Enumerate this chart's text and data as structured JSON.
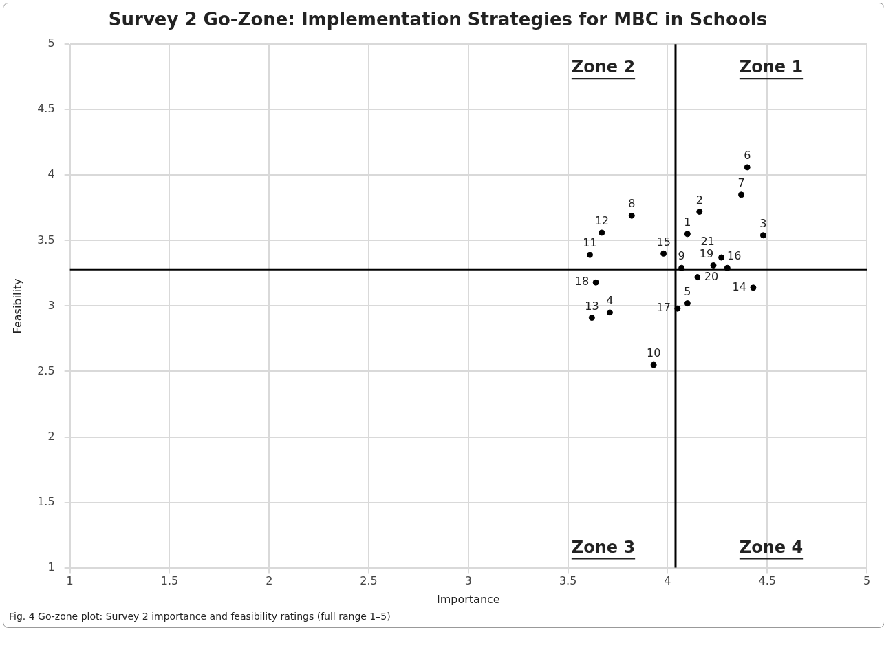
{
  "chart_data": {
    "type": "scatter",
    "title": "Survey 2 Go-Zone: Implementation Strategies for MBC in Schools",
    "xlabel": "Importance",
    "ylabel": "Feasibility",
    "xlim": [
      1,
      5
    ],
    "xticks": [
      1,
      1.5,
      2,
      2.5,
      3,
      3.5,
      4,
      4.5,
      5
    ],
    "ylim": [
      1,
      5
    ],
    "yticks": [
      1,
      1.5,
      2,
      2.5,
      3,
      3.5,
      4,
      4.5,
      5
    ],
    "grid": true,
    "legend": false,
    "marker": "circle",
    "series": [
      {
        "color": "#000000",
        "x": [
          4.1,
          4.16,
          4.48,
          3.71,
          4.1,
          4.4,
          4.37,
          3.82,
          4.07,
          3.93,
          3.61,
          3.67,
          3.62,
          4.43,
          3.98,
          4.3,
          4.05,
          3.64,
          4.23,
          4.15,
          4.27
        ],
        "values": [
          3.55,
          3.72,
          3.54,
          2.95,
          3.02,
          4.06,
          3.85,
          3.69,
          3.29,
          2.55,
          3.39,
          3.56,
          2.91,
          3.14,
          3.4,
          3.29,
          2.98,
          3.18,
          3.31,
          3.22,
          3.37
        ]
      }
    ],
    "ref_lines": [
      {
        "axis": "x",
        "value": 4.04,
        "color": "#000000"
      },
      {
        "axis": "y",
        "value": 3.28,
        "color": "#000000"
      }
    ],
    "annotations": [
      "Zone 1",
      "Zone 2",
      "Zone 3",
      "Zone 4",
      "Fig. 4 Go-zone plot: Survey 2 importance and feasibility ratings (full range 1–5)",
      {
        "text": "1",
        "x": 4.1,
        "y": 3.55
      },
      {
        "text": "2",
        "x": 4.16,
        "y": 3.72
      },
      {
        "text": "3",
        "x": 4.48,
        "y": 3.54
      },
      {
        "text": "4",
        "x": 3.71,
        "y": 2.95
      },
      {
        "text": "5",
        "x": 4.1,
        "y": 3.02
      },
      {
        "text": "6",
        "x": 4.4,
        "y": 4.06
      },
      {
        "text": "7",
        "x": 4.37,
        "y": 3.85
      },
      {
        "text": "8",
        "x": 3.82,
        "y": 3.69
      },
      {
        "text": "9",
        "x": 4.07,
        "y": 3.29
      },
      {
        "text": "10",
        "x": 3.93,
        "y": 2.55
      },
      {
        "text": "11",
        "x": 3.61,
        "y": 3.39
      },
      {
        "text": "12",
        "x": 3.67,
        "y": 3.56
      },
      {
        "text": "13",
        "x": 3.62,
        "y": 2.91
      },
      {
        "text": "14",
        "x": 4.43,
        "y": 3.14
      },
      {
        "text": "15",
        "x": 3.98,
        "y": 3.4
      },
      {
        "text": "16",
        "x": 4.3,
        "y": 3.29
      },
      {
        "text": "17",
        "x": 4.05,
        "y": 2.98
      },
      {
        "text": "18",
        "x": 3.64,
        "y": 3.18
      },
      {
        "text": "19",
        "x": 4.23,
        "y": 3.31
      },
      {
        "text": "20",
        "x": 4.15,
        "y": 3.22
      },
      {
        "text": "21",
        "x": 4.27,
        "y": 3.37
      }
    ]
  }
}
